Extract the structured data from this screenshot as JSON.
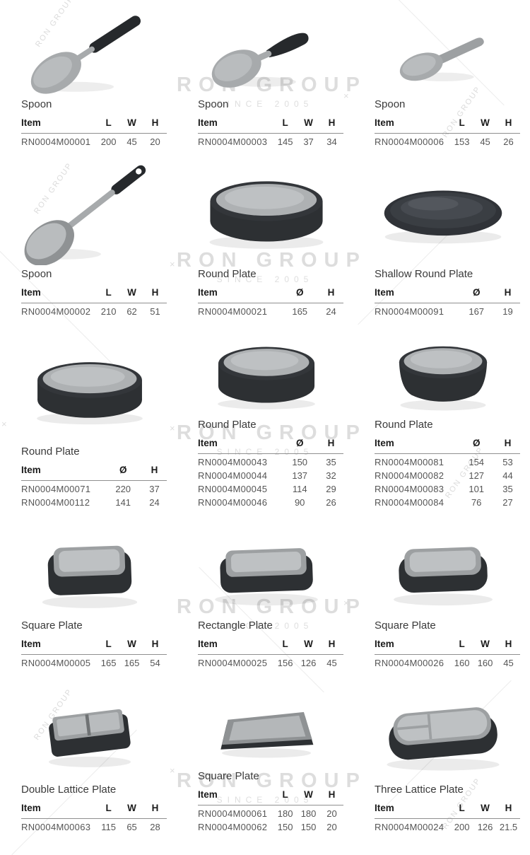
{
  "watermark": {
    "brand": "RON GROUP",
    "since": "SINCE 2005",
    "mark": "×"
  },
  "products": [
    {
      "name": "Spoon",
      "photo": "spoon-long",
      "columns": [
        "Item",
        "L",
        "W",
        "H"
      ],
      "rows": [
        [
          "RN0004M00001",
          "200",
          "45",
          "20"
        ]
      ]
    },
    {
      "name": "Spoon",
      "photo": "spoon-soup",
      "columns": [
        "Item",
        "L",
        "W",
        "H"
      ],
      "rows": [
        [
          "RN0004M00003",
          "145",
          "37",
          "34"
        ]
      ]
    },
    {
      "name": "Spoon",
      "photo": "spoon-flat",
      "columns": [
        "Item",
        "L",
        "W",
        "H"
      ],
      "rows": [
        [
          "RN0004M00006",
          "153",
          "45",
          "26"
        ]
      ]
    },
    {
      "name": "Spoon",
      "photo": "ladle",
      "columns": [
        "Item",
        "L",
        "W",
        "H"
      ],
      "rows": [
        [
          "RN0004M00002",
          "210",
          "62",
          "51"
        ]
      ]
    },
    {
      "name": "Round Plate",
      "photo": "plate-round",
      "columns": [
        "Item",
        "Ø",
        "H"
      ],
      "rows": [
        [
          "RN0004M00021",
          "165",
          "24"
        ]
      ]
    },
    {
      "name": "Shallow Round Plate",
      "photo": "plate-round-dark",
      "columns": [
        "Item",
        "Ø",
        "H"
      ],
      "rows": [
        [
          "RN0004M00091",
          "167",
          "19"
        ]
      ]
    },
    {
      "name": "Round Plate",
      "photo": "bowl-low",
      "columns": [
        "Item",
        "Ø",
        "H"
      ],
      "rows": [
        [
          "RN0004M00071",
          "220",
          "37"
        ],
        [
          "RN0004M00112",
          "141",
          "24"
        ]
      ]
    },
    {
      "name": "Round Plate",
      "photo": "bowl-mid",
      "columns": [
        "Item",
        "Ø",
        "H"
      ],
      "rows": [
        [
          "RN0004M00043",
          "150",
          "35"
        ],
        [
          "RN0004M00044",
          "137",
          "32"
        ],
        [
          "RN0004M00045",
          "114",
          "29"
        ],
        [
          "RN0004M00046",
          "90",
          "26"
        ]
      ]
    },
    {
      "name": "Round Plate",
      "photo": "bowl-deep",
      "columns": [
        "Item",
        "Ø",
        "H"
      ],
      "rows": [
        [
          "RN0004M00081",
          "154",
          "53"
        ],
        [
          "RN0004M00082",
          "127",
          "44"
        ],
        [
          "RN0004M00083",
          "101",
          "35"
        ],
        [
          "RN0004M00084",
          "76",
          "27"
        ]
      ]
    },
    {
      "name": "Square Plate",
      "photo": "square-deep",
      "columns": [
        "Item",
        "L",
        "W",
        "H"
      ],
      "rows": [
        [
          "RN0004M00005",
          "165",
          "165",
          "54"
        ]
      ]
    },
    {
      "name": "Rectangle Plate",
      "photo": "rect-mid",
      "columns": [
        "Item",
        "L",
        "W",
        "H"
      ],
      "rows": [
        [
          "RN0004M00025",
          "156",
          "126",
          "45"
        ]
      ]
    },
    {
      "name": "Square Plate",
      "photo": "square-mid",
      "columns": [
        "Item",
        "L",
        "W",
        "H"
      ],
      "rows": [
        [
          "RN0004M00026",
          "160",
          "160",
          "45"
        ]
      ]
    },
    {
      "name": "Double Lattice Plate",
      "photo": "double-lattice",
      "columns": [
        "Item",
        "L",
        "W",
        "H"
      ],
      "rows": [
        [
          "RN0004M00063",
          "115",
          "65",
          "28"
        ]
      ]
    },
    {
      "name": "Square Plate",
      "photo": "square-flat",
      "columns": [
        "Item",
        "L",
        "W",
        "H"
      ],
      "rows": [
        [
          "RN0004M00061",
          "180",
          "180",
          "20"
        ],
        [
          "RN0004M00062",
          "150",
          "150",
          "20"
        ]
      ]
    },
    {
      "name": "Three Lattice Plate",
      "photo": "three-lattice",
      "columns": [
        "Item",
        "L",
        "W",
        "H"
      ],
      "rows": [
        [
          "RN0004M00024",
          "200",
          "126",
          "21.5"
        ]
      ]
    }
  ]
}
